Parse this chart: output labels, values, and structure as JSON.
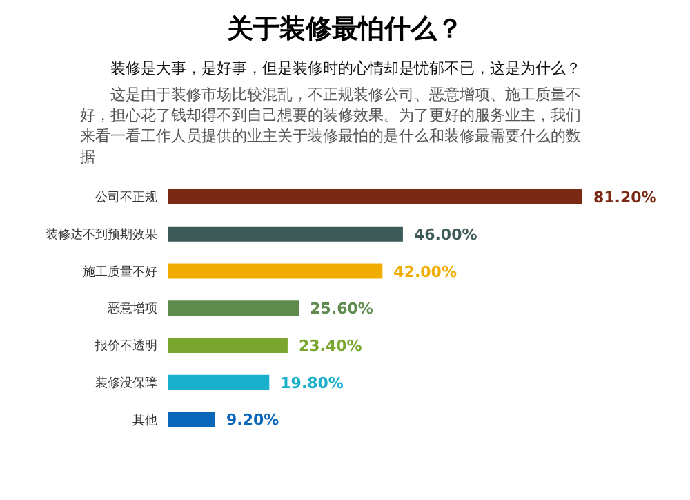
{
  "chart_data": {
    "type": "bar",
    "orientation": "horizontal",
    "title": "关于装修最怕什么？",
    "subtitle": "装修是大事，是好事，但是装修时的心情却是忧郁不已，这是为什么？",
    "annotations": [
      "这是由于装修市场比较混乱，不正规装修公司、恶意增项、施工质量不好，担心花了钱却得不到自己想要的装修效果。为了更好的服务业主，我们来看一看工作人员提供的业主关于装修最怕的是什么和装修最需要什么的数据"
    ],
    "categories": [
      "公司不正规",
      "装修达不到预期效果",
      "施工质量不好",
      "恶意增项",
      "报价不透明",
      "装修没保障",
      "其他"
    ],
    "values": [
      81.2,
      46.0,
      42.0,
      25.6,
      23.4,
      19.8,
      9.2
    ],
    "value_labels": [
      "81.20%",
      "46.00%",
      "42.00%",
      "25.60%",
      "23.40%",
      "19.80%",
      "9.20%"
    ],
    "colors": [
      "#7a2a14",
      "#3d5a58",
      "#f0ad00",
      "#5e8a4e",
      "#7aa630",
      "#1ab0cc",
      "#0a66b8"
    ]
  }
}
